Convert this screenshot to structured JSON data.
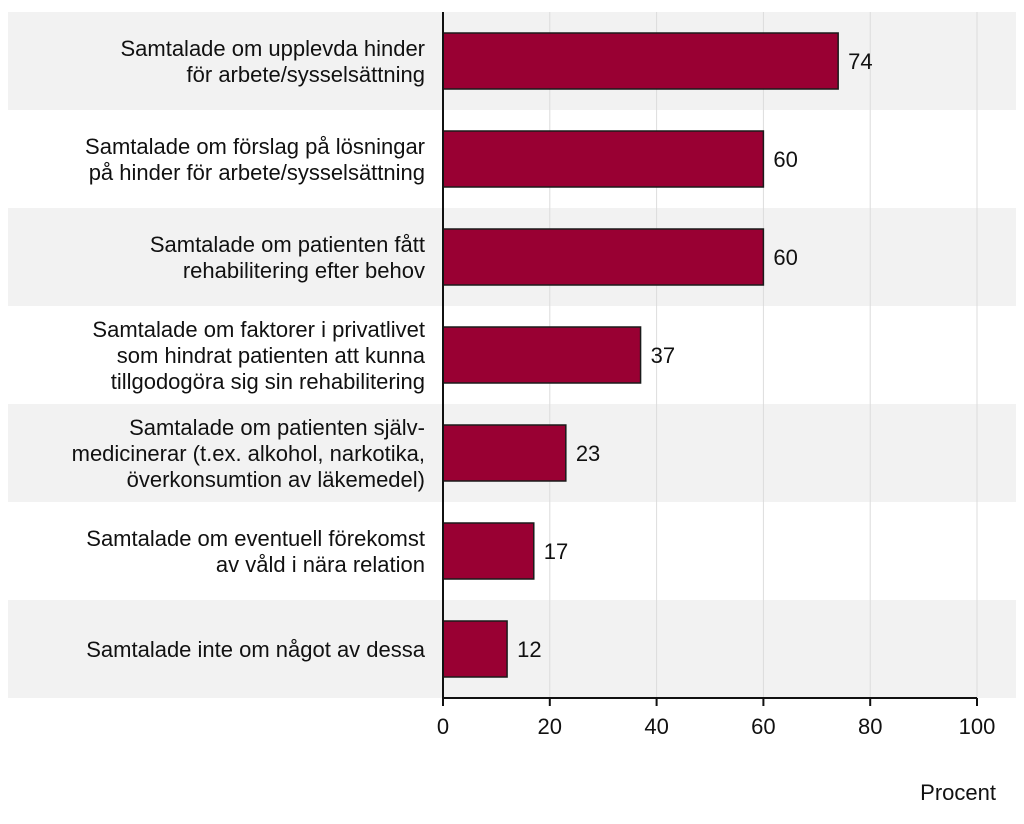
{
  "chart_data": {
    "type": "bar",
    "orientation": "horizontal",
    "categories": [
      [
        "Samtalade om upplevda hinder",
        "för arbete/sysselsättning"
      ],
      [
        "Samtalade om förslag på lösningar",
        "på hinder för arbete/sysselsättning"
      ],
      [
        "Samtalade om patienten fått",
        "rehabilitering efter behov"
      ],
      [
        "Samtalade om faktorer i privatlivet",
        "som hindrat patienten att kunna",
        "tillgodogöra sig  sin rehabilitering"
      ],
      [
        "Samtalade om patienten själv-",
        "medicinerar (t.ex. alkohol, narkotika,",
        "överkonsumtion av läkemedel)"
      ],
      [
        "Samtalade om eventuell förekomst",
        "av våld i nära relation"
      ],
      [
        "Samtalade inte om något av dessa"
      ]
    ],
    "values": [
      74,
      60,
      60,
      37,
      23,
      17,
      12
    ],
    "xlabel": "Procent",
    "xlim": [
      0,
      100
    ],
    "xticks": [
      0,
      20,
      40,
      60,
      80,
      100
    ],
    "grid": true,
    "legend": "none",
    "colors": {
      "bar": "#990033",
      "bar_stroke": "#1a1a1a",
      "band": "#f2f2f2",
      "grid": "#dcdcdc",
      "axis": "#111111"
    }
  }
}
